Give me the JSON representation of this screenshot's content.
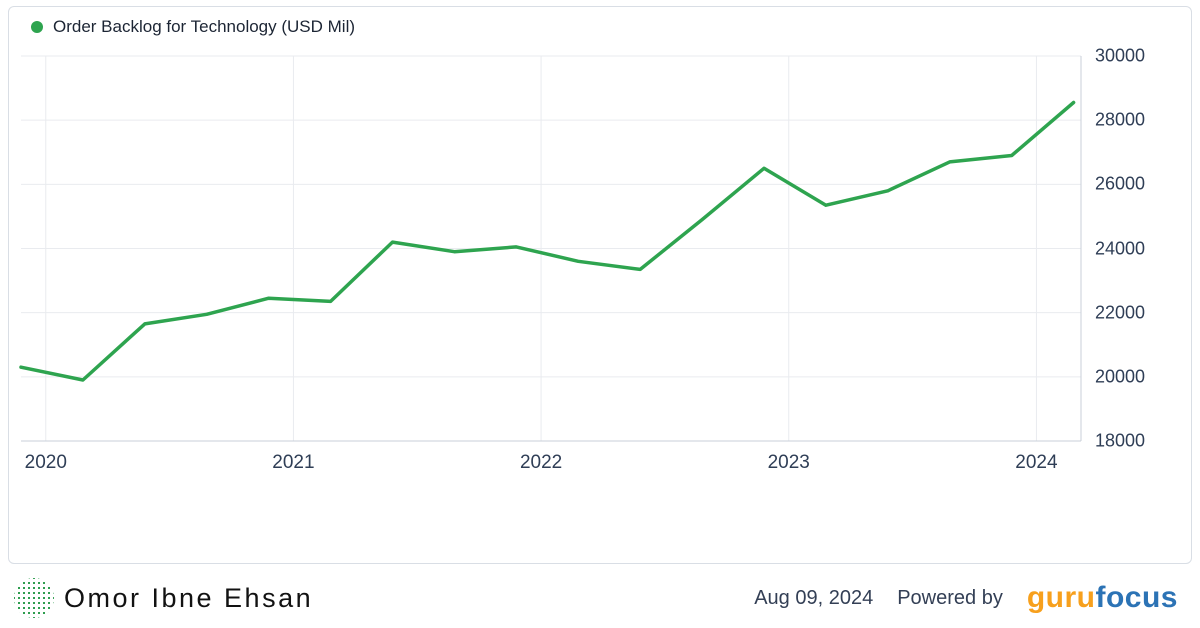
{
  "legend": {
    "label": "Order Backlog for Technology (USD Mil)",
    "marker_color": "#2EA44F"
  },
  "chart_data": {
    "type": "line",
    "title": "Order Backlog for Technology (USD Mil)",
    "unit": "USD Mil",
    "grid": true,
    "legend_position": "top-left",
    "x": [
      2019.9,
      2020.15,
      2020.4,
      2020.65,
      2020.9,
      2021.15,
      2021.4,
      2021.65,
      2021.9,
      2022.15,
      2022.4,
      2022.65,
      2022.9,
      2023.15,
      2023.4,
      2023.65,
      2023.9,
      2024.15
    ],
    "series": [
      {
        "name": "Order Backlog for Technology",
        "color": "#2EA44F",
        "values": [
          20300,
          19900,
          21650,
          21950,
          22450,
          22350,
          24200,
          23900,
          24050,
          23600,
          23350,
          24900,
          26500,
          25350,
          25800,
          26700,
          26900,
          28550
        ]
      }
    ],
    "x_tick_positions": [
      2020,
      2021,
      2022,
      2023,
      2024
    ],
    "x_tick_labels": [
      "2020",
      "2021",
      "2022",
      "2023",
      "2024"
    ],
    "y_ticks": [
      18000,
      20000,
      22000,
      24000,
      26000,
      28000,
      30000
    ],
    "y_tick_labels": [
      "18000",
      "20000",
      "22000",
      "24000",
      "26000",
      "28000",
      "30000"
    ],
    "xlim": [
      2019.9,
      2024.18
    ],
    "ylim": [
      18000,
      30000
    ],
    "xlabel": "",
    "ylabel": ""
  },
  "footer": {
    "author": "Omor Ibne Ehsan",
    "date": "Aug 09, 2024",
    "powered_by": "Powered by",
    "brand_guru": "guru",
    "brand_focus": "focus",
    "brand_guru_color": "#F7A01D",
    "brand_focus_color": "#2C73B5"
  }
}
